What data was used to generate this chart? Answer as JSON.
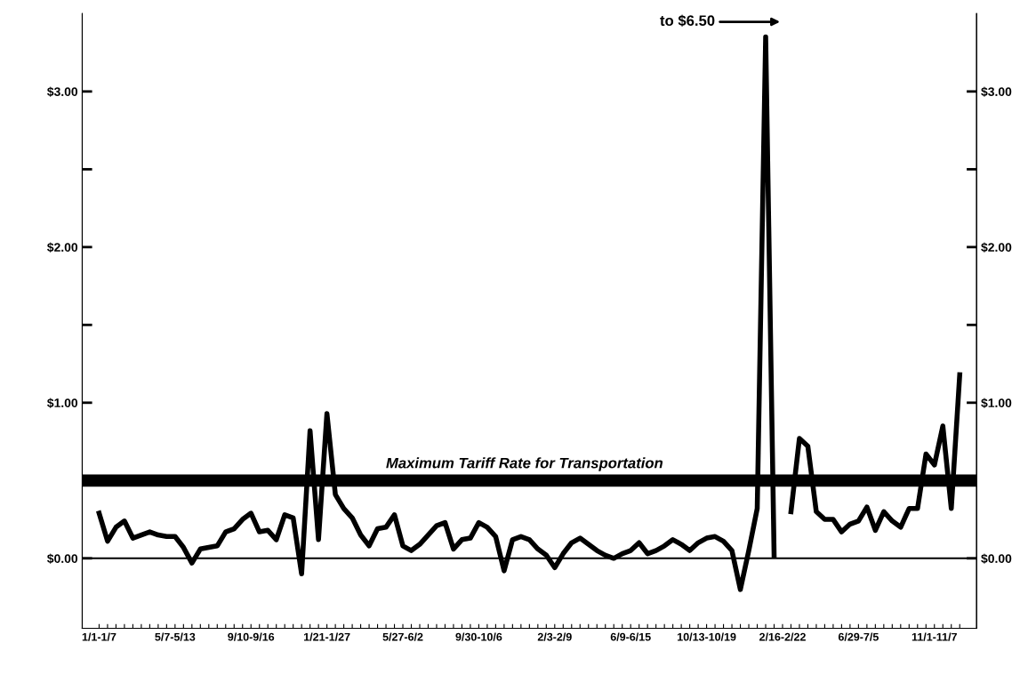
{
  "chart_data": {
    "type": "line",
    "categories": [
      "1/1-1/7",
      null,
      null,
      null,
      null,
      null,
      null,
      null,
      null,
      "5/7-5/13",
      null,
      null,
      null,
      null,
      null,
      null,
      null,
      null,
      "9/10-9/16",
      null,
      null,
      null,
      null,
      null,
      null,
      null,
      null,
      "1/21-1/27",
      null,
      null,
      null,
      null,
      null,
      null,
      null,
      null,
      "5/27-6/2",
      null,
      null,
      null,
      null,
      null,
      null,
      null,
      null,
      "9/30-10/6",
      null,
      null,
      null,
      null,
      null,
      null,
      null,
      null,
      "2/3-2/9",
      null,
      null,
      null,
      null,
      null,
      null,
      null,
      null,
      "6/9-6/15",
      null,
      null,
      null,
      null,
      null,
      null,
      null,
      null,
      "10/13-10/19",
      null,
      null,
      null,
      null,
      null,
      null,
      null,
      null,
      "2/16-2/22",
      null,
      null,
      null,
      null,
      null,
      null,
      null,
      null,
      "6/29-7/5",
      null,
      null,
      null,
      null,
      null,
      null,
      null,
      null,
      "11/1-11/7",
      null,
      null,
      null
    ],
    "series": [
      {
        "color": "#000000",
        "values": [
          0.29,
          0.11,
          0.2,
          0.24,
          0.13,
          0.15,
          0.17,
          0.15,
          0.14,
          0.14,
          0.07,
          -0.03,
          0.06,
          0.07,
          0.08,
          0.17,
          0.19,
          0.25,
          0.29,
          0.17,
          0.18,
          0.12,
          0.28,
          0.26,
          -0.1,
          0.82,
          0.12,
          0.93,
          0.41,
          0.32,
          0.26,
          0.15,
          0.08,
          0.19,
          0.2,
          0.28,
          0.08,
          0.05,
          0.09,
          0.15,
          0.21,
          0.23,
          0.06,
          0.12,
          0.13,
          0.23,
          0.2,
          0.14,
          -0.08,
          0.12,
          0.14,
          0.12,
          0.06,
          0.02,
          -0.06,
          0.03,
          0.1,
          0.13,
          0.09,
          0.05,
          0.02,
          0.0,
          0.03,
          0.05,
          0.1,
          0.03,
          0.05,
          0.08,
          0.12,
          0.09,
          0.05,
          0.1,
          0.13,
          0.14,
          0.11,
          0.05,
          -0.2,
          0.05,
          0.32,
          3.35,
          0.02,
          null,
          0.3,
          0.77,
          0.72,
          0.3,
          0.25,
          0.25,
          0.17,
          0.22,
          0.24,
          0.33,
          0.18,
          0.3,
          0.24,
          0.2,
          0.32,
          0.32,
          0.67,
          0.6,
          0.85,
          0.32,
          1.18
        ]
      }
    ],
    "ylim": [
      -0.45,
      3.5
    ],
    "yticks": [
      {
        "value": 0,
        "label": "$0.00"
      },
      {
        "value": 0.5,
        "label": null
      },
      {
        "value": 1,
        "label": "$1.00"
      },
      {
        "value": 1.5,
        "label": null
      },
      {
        "value": 2,
        "label": "$2.00"
      },
      {
        "value": 2.5,
        "label": null
      },
      {
        "value": 3,
        "label": "$3.00"
      }
    ],
    "y2lim": [
      -0.45,
      3.5
    ],
    "y2ticks": [
      {
        "value": 0,
        "label": "$0.00"
      },
      {
        "value": 0.5,
        "label": null
      },
      {
        "value": 1,
        "label": "$1.00"
      },
      {
        "value": 1.5,
        "label": null
      },
      {
        "value": 2,
        "label": "$2.00"
      },
      {
        "value": 2.5,
        "label": null
      },
      {
        "value": 3,
        "label": "$3.00"
      }
    ],
    "ref_lines": [
      {
        "axis": "y",
        "value": 0.5,
        "label": "Maximum Tariff Rate for Transportation",
        "color": "#000000"
      },
      {
        "axis": "y",
        "value": 0,
        "color": "#000000"
      }
    ],
    "annotations": [
      "to $6.50"
    ],
    "grid": false,
    "legend": false,
    "marker": "none",
    "line_style": "solid"
  }
}
